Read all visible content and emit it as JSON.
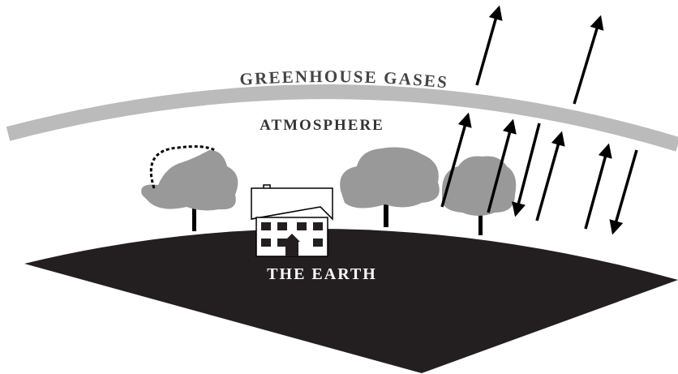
{
  "labels": {
    "greenhouse": "GREENHOUSE GASES",
    "atmosphere": "ATMOSPHERE",
    "earth": "THE EARTH"
  }
}
